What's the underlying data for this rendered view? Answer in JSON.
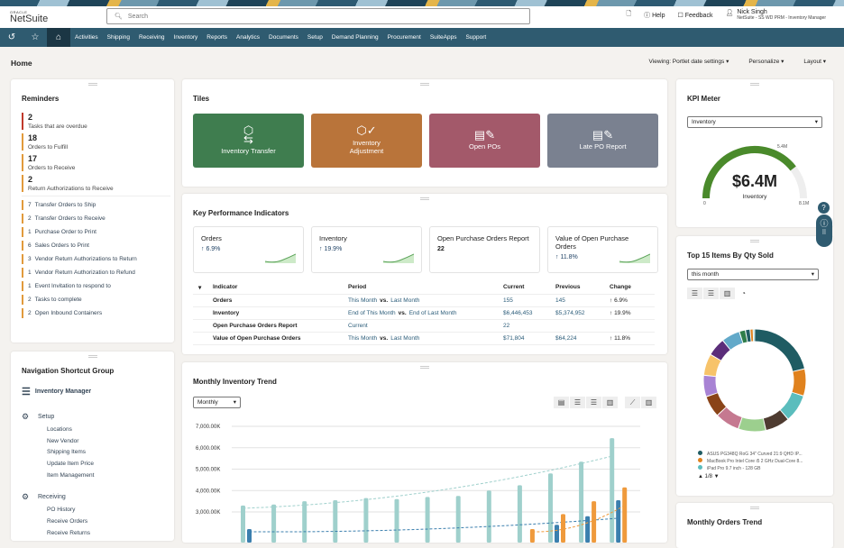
{
  "header": {
    "logo_top": "ORACLE",
    "logo": "NetSuite",
    "search_placeholder": "Search",
    "help": "Help",
    "feedback": "Feedback",
    "user_name": "Nick Singh",
    "user_role": "NetSuite - SS WD PRM - Inventory Manager"
  },
  "nav": {
    "items": [
      "Activities",
      "Shipping",
      "Receiving",
      "Inventory",
      "Reports",
      "Analytics",
      "Documents",
      "Setup",
      "Demand Planning",
      "Procurement",
      "SuiteApps",
      "Support"
    ]
  },
  "page": {
    "title": "Home",
    "viewing": "Viewing: Portlet date settings",
    "personalize": "Personalize",
    "layout": "Layout"
  },
  "reminders": {
    "title": "Reminders",
    "big": [
      {
        "v": "2",
        "l": "Tasks that are overdue",
        "c": "#c0392b"
      },
      {
        "v": "18",
        "l": "Orders to Fulfill",
        "c": "#e19a3c"
      },
      {
        "v": "17",
        "l": "Orders to Receive",
        "c": "#e19a3c"
      },
      {
        "v": "2",
        "l": "Return Authorizations to Receive",
        "c": "#e19a3c"
      }
    ],
    "small": [
      {
        "v": "7",
        "l": "Transfer Orders to Ship"
      },
      {
        "v": "2",
        "l": "Transfer Orders to Receive"
      },
      {
        "v": "1",
        "l": "Purchase Order to Print"
      },
      {
        "v": "6",
        "l": "Sales Orders to Print"
      },
      {
        "v": "3",
        "l": "Vendor Return Authorizations to Return"
      },
      {
        "v": "1",
        "l": "Vendor Return Authorization to Refund"
      },
      {
        "v": "1",
        "l": "Event Invitation to respond to"
      },
      {
        "v": "2",
        "l": "Tasks to complete"
      },
      {
        "v": "2",
        "l": "Open Inbound Containers"
      }
    ]
  },
  "shortcuts": {
    "title": "Navigation Shortcut Group",
    "group": "Inventory Manager",
    "sections": [
      {
        "name": "Setup",
        "items": [
          "Locations",
          "New Vendor",
          "Shipping Items",
          "Update Item Price",
          "Item Management"
        ]
      },
      {
        "name": "Receiving",
        "items": [
          "PO History",
          "Receive Orders",
          "Receive Returns"
        ]
      }
    ]
  },
  "tiles": {
    "title": "Tiles",
    "items": [
      {
        "label": "Inventory Transfer",
        "color": "#3f7d4f",
        "icon": "box-transfer-icon"
      },
      {
        "label": "Inventory Adjustment",
        "color": "#b9743a",
        "icon": "box-check-icon"
      },
      {
        "label": "Open POs",
        "color": "#a3596a",
        "icon": "report-edit-icon"
      },
      {
        "label": "Late PO Report",
        "color": "#7a8190",
        "icon": "report-edit-icon"
      }
    ]
  },
  "kpi": {
    "title": "Key Performance Indicators",
    "cards": [
      {
        "name": "Orders",
        "change": "6.9%"
      },
      {
        "name": "Inventory",
        "change": "19.9%"
      },
      {
        "name": "Open Purchase Orders Report",
        "value": "22"
      },
      {
        "name": "Value of Open Purchase Orders",
        "change": "11.8%"
      }
    ],
    "headers": [
      "Indicator",
      "Period",
      "Current",
      "Previous",
      "Change"
    ],
    "rows": [
      {
        "ind": "Orders",
        "p1": "This Month",
        "vs": "vs.",
        "p2": "Last Month",
        "cur": "155",
        "prev": "145",
        "chg": "6.9%"
      },
      {
        "ind": "Inventory",
        "p1": "End of This Month",
        "vs": "vs.",
        "p2": "End of Last Month",
        "cur": "$6,446,453",
        "prev": "$5,374,952",
        "chg": "19.9%"
      },
      {
        "ind": "Open Purchase Orders Report",
        "p1": "Current",
        "vs": "",
        "p2": "",
        "cur": "22",
        "prev": "",
        "chg": ""
      },
      {
        "ind": "Value of Open Purchase Orders",
        "p1": "This Month",
        "vs": "vs.",
        "p2": "Last Month",
        "cur": "$71,804",
        "prev": "$64,224",
        "chg": "11.8%"
      }
    ]
  },
  "trend": {
    "title": "Monthly Inventory Trend",
    "period": "Monthly"
  },
  "chart_data": {
    "type": "bar",
    "title": "Monthly Inventory Trend",
    "yticks": [
      "7,000.00K",
      "6,000.00K",
      "5,000.00K",
      "4,000.00K",
      "3,000.00K"
    ],
    "ylim": [
      2000,
      7000
    ],
    "grid": true,
    "series": [
      {
        "color": "#9fd0cc",
        "values": [
          3300,
          3350,
          3500,
          3550,
          3650,
          3600,
          3700,
          3750,
          4000,
          4250,
          4800,
          5350,
          6450
        ]
      },
      {
        "color": "#3b7fae",
        "values": [
          2200,
          null,
          null,
          null,
          null,
          null,
          null,
          null,
          null,
          null,
          2400,
          2800,
          3550
        ]
      },
      {
        "color": "#ef9a3c",
        "values": [
          null,
          null,
          null,
          null,
          null,
          null,
          null,
          null,
          null,
          2200,
          2900,
          3500,
          4150
        ]
      }
    ]
  },
  "kpimeter": {
    "title": "KPI Meter",
    "select": "Inventory",
    "value": "$6.4M",
    "label": "Inventory",
    "min": "0",
    "max": "8.1M",
    "target": "5.4M",
    "fraction": 0.79
  },
  "top15": {
    "title": "Top 15 Items By Qty Sold",
    "select": "this month",
    "pager": "1/8",
    "legend": [
      {
        "l": "ASUS PG348Q RoG 34\" Curved 21:9 QHD IP...",
        "c": "#1f5c63"
      },
      {
        "l": "MacBook Pro Intel Core i5 2 GHz Dual-Core 8...",
        "c": "#e0821e"
      },
      {
        "l": "iPad Pro 9.7 inch - 128 GB",
        "c": "#5bbdbd"
      }
    ],
    "slices": [
      {
        "v": 22,
        "c": "#1f5c63"
      },
      {
        "v": 9,
        "c": "#e0821e"
      },
      {
        "v": 9,
        "c": "#5bbdbd"
      },
      {
        "v": 8,
        "c": "#4e3b30"
      },
      {
        "v": 9,
        "c": "#9ccf8e"
      },
      {
        "v": 8,
        "c": "#c57990"
      },
      {
        "v": 7,
        "c": "#8a4418"
      },
      {
        "v": 7,
        "c": "#a883d4"
      },
      {
        "v": 7,
        "c": "#f7c36a"
      },
      {
        "v": 6,
        "c": "#5b2d7a"
      },
      {
        "v": 6,
        "c": "#62a9c9"
      },
      {
        "v": 2,
        "c": "#2f7d4a"
      },
      {
        "v": 1.5,
        "c": "#1f5c63"
      },
      {
        "v": 1,
        "c": "#e0821e"
      },
      {
        "v": 0.5,
        "c": "#5bbdbd"
      }
    ]
  },
  "orders": {
    "title": "Monthly Orders Trend"
  }
}
